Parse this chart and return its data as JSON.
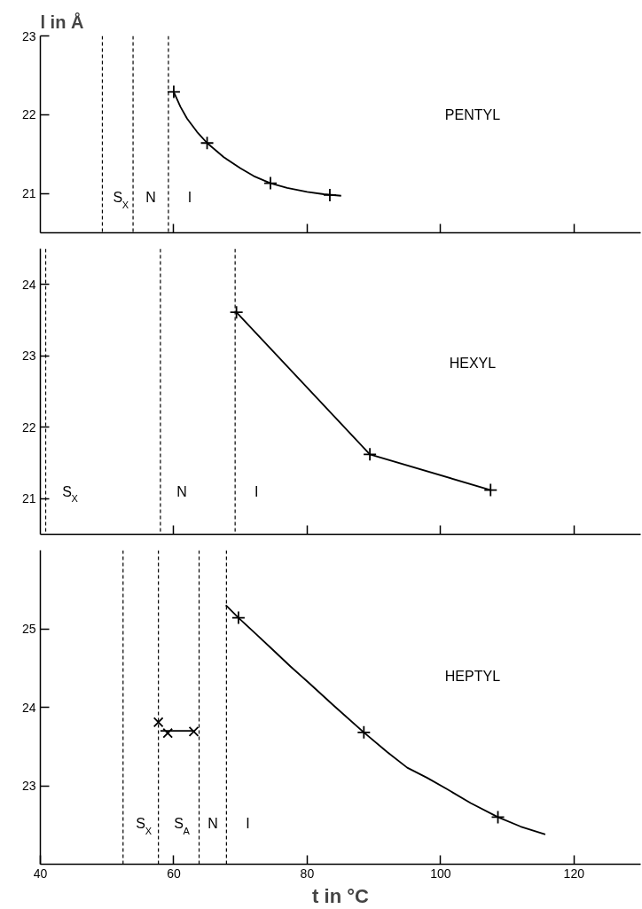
{
  "chart_data": [
    {
      "type": "line",
      "ylabel": "l in Å",
      "xlim": [
        40,
        130
      ],
      "xticks": [
        {
          "value": 60,
          "label": null
        },
        {
          "value": 80,
          "label": null
        },
        {
          "value": 100,
          "label": null
        },
        {
          "value": 120,
          "label": null
        }
      ],
      "ylim": [
        20.5,
        23
      ],
      "yticks": [
        21,
        22,
        23
      ],
      "tick_labels": "y",
      "grid": false,
      "series": [
        {
          "type": "scatter",
          "marker": "cross",
          "color": "#000000",
          "x": [
            60.0,
            65.0,
            74.5,
            83.4
          ],
          "values": [
            22.29,
            21.64,
            21.13,
            20.98
          ]
        },
        {
          "marker": "none",
          "color": "#000000",
          "x": [
            60,
            61,
            62,
            63.5,
            65,
            67.5,
            70,
            72,
            74.5,
            77,
            80,
            82.5,
            85.1
          ],
          "values": [
            22.29,
            22.1,
            21.95,
            21.78,
            21.64,
            21.46,
            21.32,
            21.22,
            21.13,
            21.07,
            21.02,
            20.99,
            20.97
          ]
        }
      ],
      "ref_lines": [
        {
          "axis": "x",
          "value": 49.3,
          "line_style": "dashed",
          "label": "S$_{X}$"
        },
        {
          "axis": "x",
          "value": 53.9,
          "line_style": "dashed",
          "label": "N"
        },
        {
          "axis": "x",
          "value": 59.2,
          "line_style": "dashed",
          "label": "I"
        }
      ],
      "annotations": [
        "PENTYL"
      ]
    },
    {
      "type": "line",
      "xlim": [
        40,
        130
      ],
      "xticks": [
        {
          "value": 60,
          "label": null
        },
        {
          "value": 80,
          "label": null
        },
        {
          "value": 100,
          "label": null
        },
        {
          "value": 120,
          "label": null
        }
      ],
      "ylim": [
        20.5,
        24.5
      ],
      "yticks": [
        21,
        22,
        23,
        24
      ],
      "tick_labels": "y",
      "grid": false,
      "series": [
        {
          "marker": "cross",
          "color": "#000000",
          "x": [
            69.4,
            89.4,
            107.5
          ],
          "values": [
            23.61,
            21.62,
            21.12
          ]
        }
      ],
      "ref_lines": [
        {
          "axis": "x",
          "value": 40.8,
          "line_style": "dashed",
          "label": "S$_{X}$"
        },
        {
          "axis": "x",
          "value": 58.0,
          "line_style": "dashed",
          "label": "N"
        },
        {
          "axis": "x",
          "value": 69.2,
          "line_style": "dashed",
          "label": "I"
        }
      ],
      "annotations": [
        "HEXYL"
      ]
    },
    {
      "type": "line",
      "xlabel": "t in °C",
      "xlim": [
        40,
        130
      ],
      "xticks": [
        40,
        60,
        80,
        100,
        120
      ],
      "ylim": [
        22,
        26
      ],
      "yticks": [
        23,
        24,
        25
      ],
      "grid": false,
      "series": [
        {
          "type": "scatter",
          "marker": "cross",
          "color": "#000000",
          "x": [
            69.7,
            88.5,
            108.6
          ],
          "values": [
            25.14,
            23.68,
            22.6
          ]
        },
        {
          "marker": "none",
          "color": "#000000",
          "x": [
            67.8,
            69.7,
            72.5,
            75,
            77.5,
            80,
            84,
            88.5,
            92,
            95,
            98,
            100.9,
            104.5,
            108.6,
            112,
            115.7
          ],
          "values": [
            25.3,
            25.14,
            24.92,
            24.72,
            24.52,
            24.33,
            24.02,
            23.68,
            23.43,
            23.23,
            23.1,
            22.96,
            22.78,
            22.6,
            22.48,
            22.38
          ]
        },
        {
          "type": "scatter",
          "marker": "x",
          "color": "#000000",
          "x": [
            57.7,
            59.1,
            63.0
          ],
          "values": [
            23.81,
            23.67,
            23.69
          ]
        },
        {
          "marker": "none",
          "color": "#000000",
          "x": [
            58.0,
            63.0
          ],
          "values": [
            23.7,
            23.7
          ]
        }
      ],
      "ref_lines": [
        {
          "axis": "x",
          "value": 52.4,
          "line_style": "dashed",
          "label": "S$_{X}$"
        },
        {
          "axis": "x",
          "value": 57.7,
          "line_style": "dashed",
          "label": "S$_{A}$"
        },
        {
          "axis": "x",
          "value": 63.8,
          "line_style": "dashed",
          "label": "N"
        },
        {
          "axis": "x",
          "value": 67.9,
          "line_style": "dashed",
          "label": "I"
        }
      ],
      "annotations": [
        "HEPTYL"
      ]
    }
  ]
}
